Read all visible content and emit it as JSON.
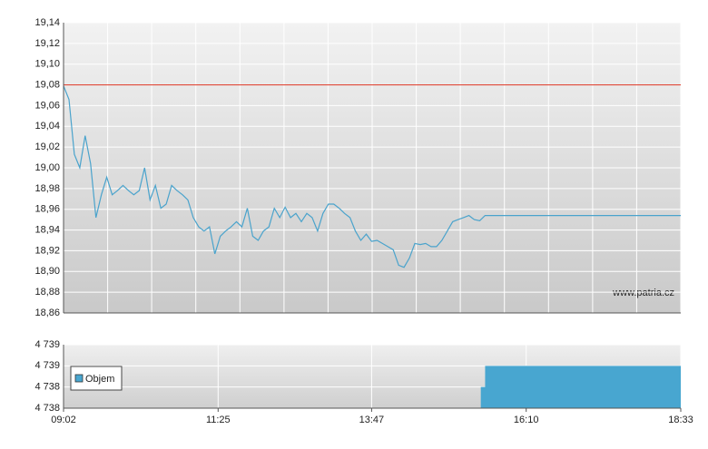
{
  "chart_data": [
    {
      "type": "line",
      "watermark": "www.patria.cz",
      "grid": true,
      "xlim": [
        "09:02",
        "18:33"
      ],
      "ylim": [
        18.86,
        19.14
      ],
      "yticks": [
        {
          "value": 18.86,
          "label": "18,86"
        },
        {
          "value": 18.88,
          "label": "18,88"
        },
        {
          "value": 18.9,
          "label": "18,90"
        },
        {
          "value": 18.92,
          "label": "18,92"
        },
        {
          "value": 18.94,
          "label": "18,94"
        },
        {
          "value": 18.96,
          "label": "18,96"
        },
        {
          "value": 18.98,
          "label": "18,98"
        },
        {
          "value": 19.0,
          "label": "19,00"
        },
        {
          "value": 19.02,
          "label": "19,02"
        },
        {
          "value": 19.04,
          "label": "19,04"
        },
        {
          "value": 19.06,
          "label": "19,06"
        },
        {
          "value": 19.08,
          "label": "19,08"
        },
        {
          "value": 19.1,
          "label": "19,10"
        },
        {
          "value": 19.12,
          "label": "19,12"
        },
        {
          "value": 19.14,
          "label": "19,14"
        }
      ],
      "reference_line": {
        "value": 19.08,
        "color": "#e04a3a"
      },
      "x": [
        "09:02",
        "09:07",
        "09:12",
        "09:17",
        "09:22",
        "09:27",
        "09:32",
        "09:37",
        "09:42",
        "09:47",
        "09:52",
        "09:57",
        "10:02",
        "10:07",
        "10:12",
        "10:17",
        "10:22",
        "10:27",
        "10:32",
        "10:37",
        "10:42",
        "10:47",
        "10:52",
        "10:57",
        "11:02",
        "11:07",
        "11:12",
        "11:17",
        "11:22",
        "11:27",
        "11:32",
        "11:37",
        "11:42",
        "11:47",
        "11:52",
        "11:57",
        "12:02",
        "12:07",
        "12:12",
        "12:17",
        "12:22",
        "12:27",
        "12:32",
        "12:37",
        "12:42",
        "12:47",
        "12:52",
        "12:57",
        "13:02",
        "13:07",
        "13:12",
        "13:17",
        "13:22",
        "13:27",
        "13:32",
        "13:37",
        "13:42",
        "13:47",
        "13:52",
        "13:57",
        "14:02",
        "14:07",
        "14:12",
        "14:17",
        "14:22",
        "14:27",
        "14:32",
        "14:37",
        "14:42",
        "14:47",
        "14:52",
        "14:57",
        "15:02",
        "15:07",
        "15:12",
        "15:17",
        "15:22",
        "15:27",
        "15:32",
        "18:33"
      ],
      "series": [
        {
          "color": "#4aa3cc",
          "values": [
            19.079,
            19.066,
            19.013,
            19.0,
            19.031,
            19.004,
            18.952,
            18.974,
            18.991,
            18.974,
            18.978,
            18.983,
            18.978,
            18.974,
            18.978,
            19.0,
            18.969,
            18.983,
            18.961,
            18.965,
            18.983,
            18.978,
            18.974,
            18.969,
            18.952,
            18.943,
            18.939,
            18.943,
            18.917,
            18.934,
            18.939,
            18.943,
            18.948,
            18.943,
            18.961,
            18.934,
            18.93,
            18.939,
            18.943,
            18.961,
            18.952,
            18.962,
            18.952,
            18.956,
            18.948,
            18.956,
            18.952,
            18.939,
            18.956,
            18.965,
            18.965,
            18.961,
            18.956,
            18.952,
            18.939,
            18.93,
            18.936,
            18.929,
            18.93,
            18.927,
            18.924,
            18.921,
            18.906,
            18.904,
            18.913,
            18.927,
            18.926,
            18.927,
            18.924,
            18.924,
            18.93,
            18.939,
            18.948,
            18.95,
            18.952,
            18.954,
            18.95,
            18.949,
            18.954,
            18.954
          ]
        }
      ]
    },
    {
      "type": "area",
      "xlim": [
        "09:02",
        "18:33"
      ],
      "xticks": [
        "09:02",
        "11:25",
        "13:47",
        "16:10",
        "18:33"
      ],
      "ylim": [
        4738.0,
        4739.2
      ],
      "yticks": [
        {
          "value": 4738.0,
          "label": "4 738"
        },
        {
          "value": 4738.4,
          "label": "4 738"
        },
        {
          "value": 4738.8,
          "label": "4 739"
        },
        {
          "value": 4739.2,
          "label": "4 739"
        }
      ],
      "legend": "upper left",
      "x": [
        "15:28",
        "15:32",
        "18:33"
      ],
      "series": [
        {
          "name": "Objem",
          "color": "#48a6d0",
          "values": [
            4738.4,
            4738.8,
            4738.8
          ]
        }
      ]
    }
  ]
}
